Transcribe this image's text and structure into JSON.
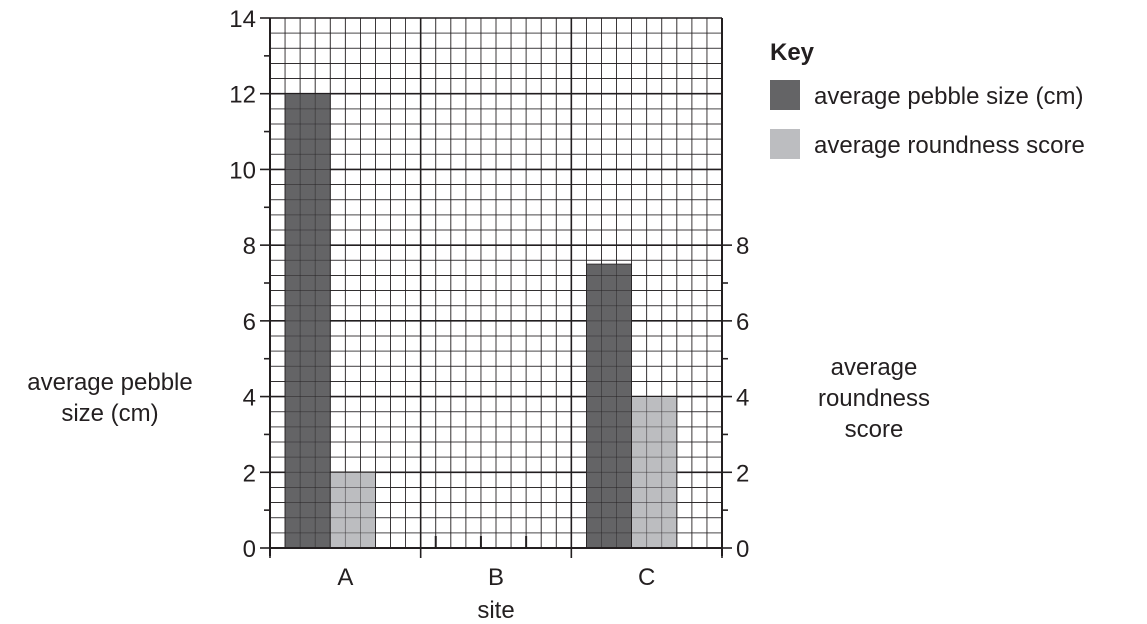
{
  "chart_data": {
    "type": "bar",
    "xlabel": "site",
    "categories": [
      "A",
      "B",
      "C"
    ],
    "left_axis": {
      "label_lines": [
        "average pebble",
        "size (cm)"
      ],
      "ylim": [
        0,
        14
      ],
      "ticks": [
        0,
        2,
        4,
        6,
        8,
        10,
        12,
        14
      ]
    },
    "right_axis": {
      "label_lines": [
        "average",
        "roundness",
        "score"
      ],
      "ylim": [
        0,
        8
      ],
      "ticks": [
        0,
        2,
        4,
        6,
        8
      ]
    },
    "series": [
      {
        "name": "average pebble size (cm)",
        "color": "#646466",
        "values": [
          12,
          null,
          7.5
        ]
      },
      {
        "name": "average roundness score",
        "color": "#bcbdc0",
        "values": [
          2,
          null,
          4
        ]
      }
    ],
    "grid": true,
    "legend": {
      "title": "Key",
      "placement": "top-right"
    }
  }
}
